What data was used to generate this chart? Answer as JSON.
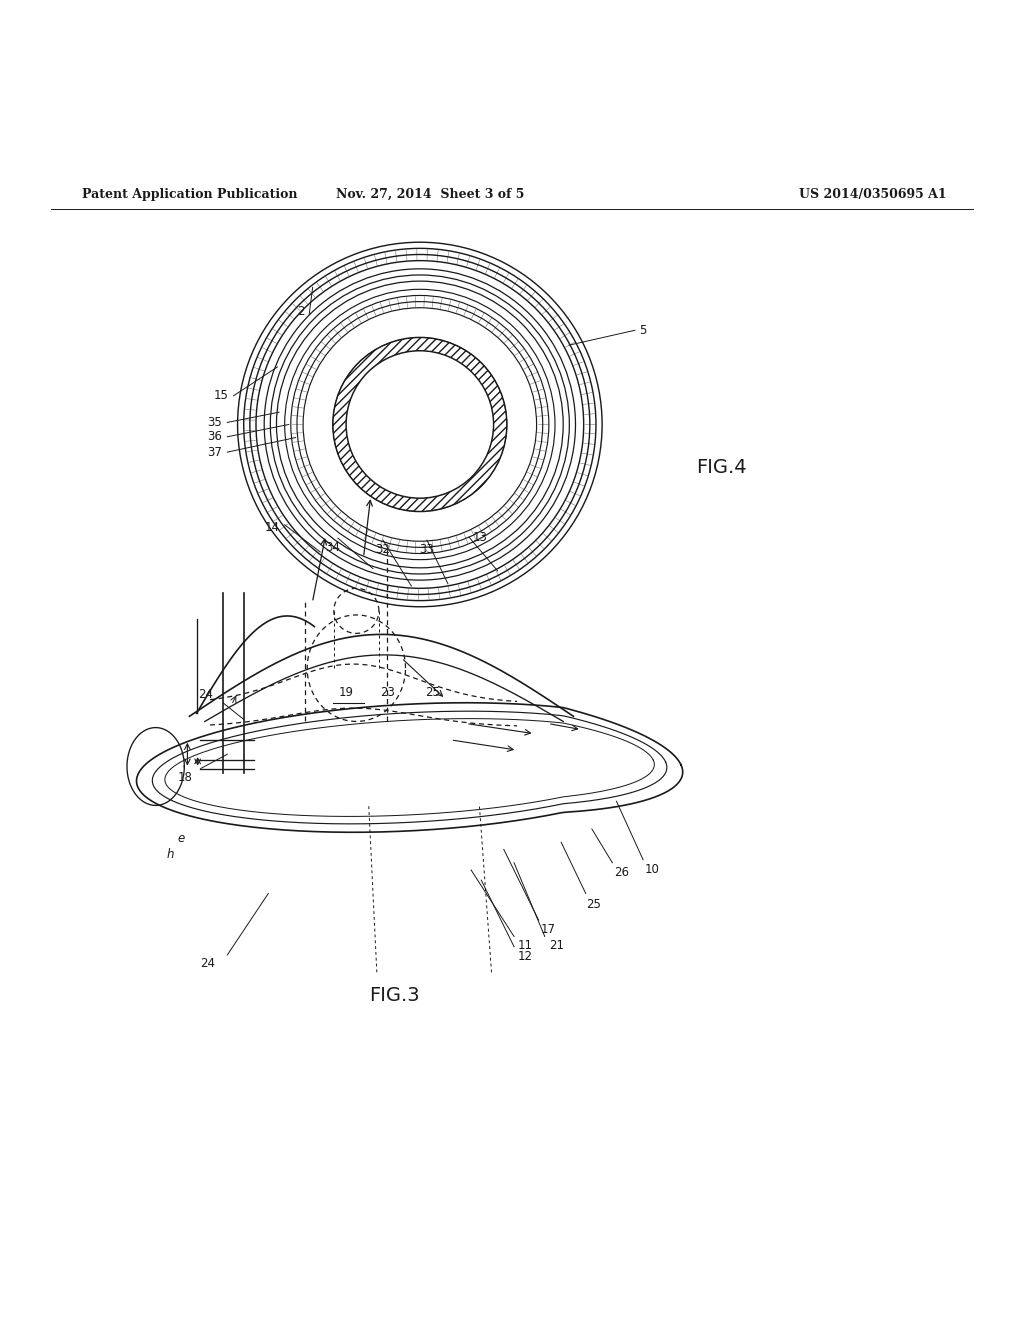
{
  "bg_color": "#ffffff",
  "line_color": "#1a1a1a",
  "header_left": "Patent Application Publication",
  "header_mid": "Nov. 27, 2014  Sheet 3 of 5",
  "header_right": "US 2014/0350695 A1",
  "fig3_label": "FIG.3",
  "fig4_label": "FIG.4"
}
